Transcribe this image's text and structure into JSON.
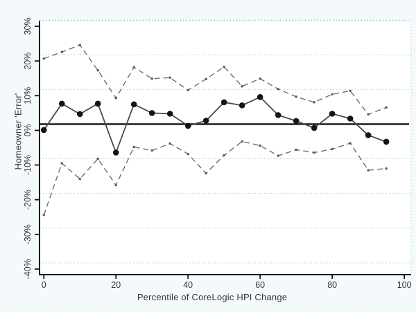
{
  "chart_data": {
    "type": "line",
    "title": "",
    "xlabel": "Percentile of CoreLogic HPI Change",
    "ylabel": "Homeowner 'Error'",
    "x": [
      0,
      5,
      10,
      15,
      20,
      25,
      30,
      35,
      40,
      45,
      50,
      55,
      60,
      65,
      70,
      75,
      80,
      85,
      90,
      95
    ],
    "series": [
      {
        "name": "homeowner-error-mean",
        "line": "solid",
        "marker": "circle",
        "values": [
          -1.7,
          5.9,
          2.9,
          5.9,
          -8.2,
          5.7,
          3.2,
          3.0,
          -0.5,
          1.0,
          6.3,
          5.4,
          7.8,
          2.6,
          0.9,
          -1.1,
          3.0,
          1.6,
          -3.2,
          -5.1
        ]
      },
      {
        "name": "confidence-band-upper",
        "line": "dashed",
        "marker": "dot",
        "values": [
          18.9,
          20.8,
          22.8,
          15.5,
          7.5,
          16.4,
          13.1,
          13.4,
          9.8,
          13.0,
          16.5,
          10.9,
          13.1,
          10.1,
          7.9,
          6.3,
          8.6,
          9.6,
          2.8,
          4.8
        ]
      },
      {
        "name": "confidence-band-lower",
        "line": "dashed",
        "marker": "dot",
        "values": [
          -26.2,
          -11.3,
          -15.8,
          -10.0,
          -17.6,
          -6.6,
          -7.6,
          -5.6,
          -8.6,
          -14.2,
          -9.0,
          -5.0,
          -6.2,
          -9.1,
          -7.4,
          -8.2,
          -7.2,
          -5.5,
          -13.3,
          -12.8
        ]
      }
    ],
    "reference_line": 0,
    "xticks": {
      "values": [
        0,
        20,
        40,
        60,
        80,
        100
      ],
      "labels": [
        "0",
        "20",
        "40",
        "60",
        "80",
        "100"
      ]
    },
    "yticks": {
      "values": [
        30,
        20,
        10,
        0,
        -10,
        -20,
        -30,
        -40
      ],
      "labels": [
        "30%",
        "20%",
        "10%",
        "0%",
        "-10%",
        "-20%",
        "-30%",
        "-40%"
      ]
    },
    "xlim": [
      -1.2,
      101.9
    ],
    "ylim": [
      -43.4,
      29.8
    ],
    "grid": "horizontal-dotted",
    "legend_position": "none"
  }
}
